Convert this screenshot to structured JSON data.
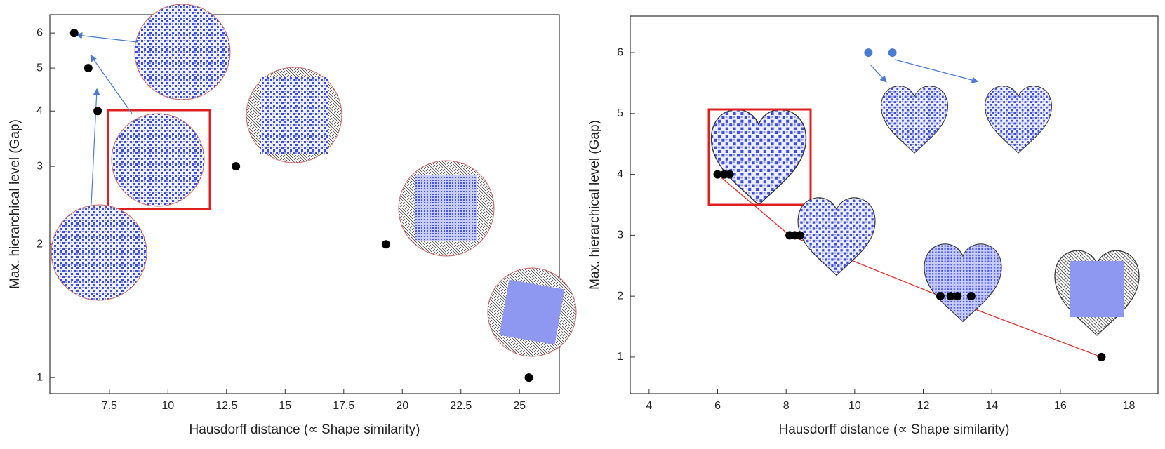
{
  "chart_data": [
    {
      "type": "scatter",
      "x_label": "Hausdorff distance (∝ Shape similarity)",
      "y_label": "Max. hierarchical level (Gap)",
      "xlim": [
        4.96,
        26.7
      ],
      "xticks": [
        7.5,
        10,
        12.5,
        15,
        17.5,
        20,
        22.5,
        25
      ],
      "ylim": [
        0.92,
        6.6
      ],
      "yticks": [
        1,
        2,
        3,
        4,
        5,
        6
      ],
      "yscale": "log",
      "series": [
        {
          "color": "#000000",
          "x": [
            6.0,
            6.6,
            7.0,
            12.9,
            19.3,
            25.4
          ],
          "values": [
            6,
            5,
            4,
            3,
            2,
            1
          ]
        }
      ]
    },
    {
      "type": "scatter",
      "x_label": "Hausdorff distance (∝ Shape similarity)",
      "y_label": "Max. hierarchical level (Gap)",
      "xlim": [
        3.45,
        18.85
      ],
      "xticks": [
        4,
        6,
        8,
        10,
        12,
        14,
        16,
        18
      ],
      "ylim": [
        0.4,
        6.6
      ],
      "yticks": [
        1,
        2,
        3,
        4,
        5,
        6
      ],
      "yscale": "linear",
      "series": [
        {
          "type": "line",
          "color": "#e03030",
          "x": [
            6.0,
            8.1,
            12.5,
            17.2
          ],
          "values": [
            4,
            3,
            2,
            1
          ]
        },
        {
          "color": "#000000",
          "x": [
            6.0,
            6.2,
            6.35,
            8.1,
            8.25,
            8.4,
            12.5,
            12.8,
            13.0,
            13.4,
            17.2
          ],
          "values": [
            4,
            4,
            4,
            3,
            3,
            3,
            2,
            2,
            2,
            2,
            1
          ]
        },
        {
          "color": "#4a7bd0",
          "x": [
            10.4,
            11.1
          ],
          "values": [
            6,
            6
          ]
        }
      ]
    }
  ]
}
